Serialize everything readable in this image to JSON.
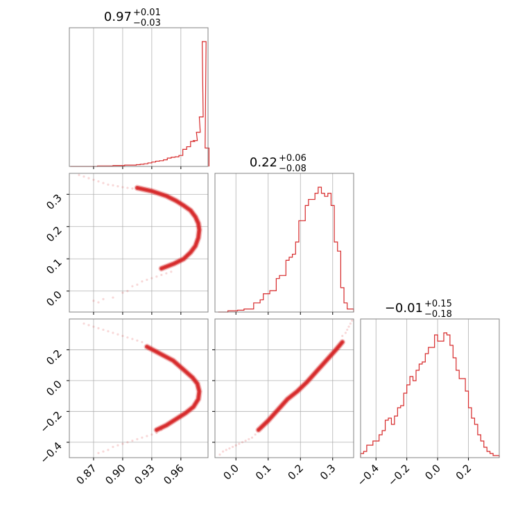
{
  "chart_data": [
    {
      "type": "corner",
      "colors": {
        "series": "#d62728",
        "grid": "#b0b0b0",
        "frame": "#808080"
      },
      "grid": true,
      "parameters": [
        {
          "id": "p0",
          "range": [
            0.845,
            0.988
          ],
          "ticks": [
            0.87,
            0.9,
            0.93,
            0.96
          ],
          "tick_labels": [
            "0.87",
            "0.90",
            "0.93",
            "0.96"
          ]
        },
        {
          "id": "p1",
          "range": [
            -0.065,
            0.365
          ],
          "ticks": [
            0.0,
            0.1,
            0.2,
            0.3
          ],
          "tick_labels": [
            "0.0",
            "0.1",
            "0.2",
            "0.3"
          ]
        },
        {
          "id": "p2",
          "range": [
            -0.5,
            0.4
          ],
          "ticks": [
            -0.4,
            -0.2,
            0.0,
            0.2
          ],
          "tick_labels": [
            "−0.4",
            "−0.2",
            "0.0",
            "0.2"
          ]
        }
      ],
      "marginals": [
        {
          "param": "p0",
          "title": {
            "median": "0.97",
            "upper": "+0.01",
            "lower": "−0.03"
          },
          "histogram": {
            "x": [
              0.848,
              0.852,
              0.856,
              0.86,
              0.864,
              0.868,
              0.872,
              0.876,
              0.88,
              0.884,
              0.888,
              0.892,
              0.896,
              0.9,
              0.904,
              0.908,
              0.912,
              0.916,
              0.92,
              0.924,
              0.928,
              0.932,
              0.936,
              0.94,
              0.944,
              0.948,
              0.952,
              0.956,
              0.96,
              0.964,
              0.968,
              0.972,
              0.975,
              0.978,
              0.981,
              0.984,
              0.987
            ],
            "counts": [
              0,
              0,
              0,
              0,
              0,
              0,
              0,
              1,
              1,
              1,
              1,
              2,
              2,
              2,
              3,
              3,
              3,
              4,
              5,
              6,
              8,
              10,
              12,
              13,
              15,
              19,
              21,
              22,
              25,
              39,
              45,
              57,
              59,
              78,
              113,
              285,
              42
            ]
          }
        },
        {
          "param": "p1",
          "title": {
            "median": "0.22",
            "upper": "+0.06",
            "lower": "−0.08"
          },
          "histogram": {
            "x": [
              -0.05,
              -0.04,
              -0.03,
              -0.02,
              -0.01,
              0.0,
              0.01,
              0.02,
              0.03,
              0.04,
              0.05,
              0.06,
              0.07,
              0.08,
              0.09,
              0.1,
              0.11,
              0.12,
              0.13,
              0.14,
              0.15,
              0.16,
              0.17,
              0.18,
              0.19,
              0.2,
              0.21,
              0.22,
              0.23,
              0.24,
              0.25,
              0.26,
              0.27,
              0.28,
              0.29,
              0.3,
              0.31,
              0.32,
              0.33,
              0.34,
              0.35,
              0.36
            ],
            "counts": [
              0,
              0,
              0,
              2,
              2,
              2,
              3,
              3,
              5,
              5,
              5,
              15,
              15,
              20,
              30,
              30,
              35,
              35,
              55,
              60,
              60,
              85,
              90,
              95,
              115,
              150,
              150,
              175,
              185,
              185,
              195,
              205,
              195,
              190,
              195,
              175,
              115,
              100,
              40,
              15,
              5,
              5
            ]
          }
        },
        {
          "param": "p2",
          "title": {
            "median": "−0.01",
            "upper": "+0.15",
            "lower": "−0.18"
          },
          "histogram": {
            "x": [
              -0.49,
              -0.47,
              -0.45,
              -0.43,
              -0.41,
              -0.39,
              -0.37,
              -0.35,
              -0.33,
              -0.31,
              -0.29,
              -0.27,
              -0.25,
              -0.23,
              -0.21,
              -0.19,
              -0.17,
              -0.15,
              -0.13,
              -0.11,
              -0.09,
              -0.07,
              -0.05,
              -0.03,
              -0.01,
              0.01,
              0.03,
              0.05,
              0.07,
              0.09,
              0.11,
              0.13,
              0.15,
              0.17,
              0.19,
              0.21,
              0.23,
              0.25,
              0.27,
              0.29,
              0.31,
              0.33,
              0.35,
              0.37,
              0.39
            ],
            "counts": [
              10,
              15,
              30,
              30,
              40,
              40,
              55,
              65,
              90,
              95,
              80,
              100,
              120,
              125,
              155,
              175,
              195,
              185,
              210,
              225,
              230,
              250,
              265,
              265,
              295,
              280,
              280,
              300,
              295,
              270,
              240,
              210,
              190,
              190,
              160,
              120,
              95,
              80,
              55,
              40,
              25,
              15,
              10,
              5,
              5
            ]
          }
        }
      ],
      "joint": [
        {
          "x": "p0",
          "y": "p1",
          "scatter": [
            [
              0.855,
              0.36
            ],
            [
              0.86,
              0.355
            ],
            [
              0.865,
              0.35
            ],
            [
              0.87,
              0.345
            ],
            [
              0.875,
              0.34
            ],
            [
              0.88,
              0.335
            ],
            [
              0.885,
              0.33
            ],
            [
              0.89,
              0.328
            ],
            [
              0.895,
              0.325
            ],
            [
              0.9,
              0.322
            ],
            [
              0.905,
              0.32
            ],
            [
              0.91,
              0.318
            ],
            [
              0.915,
              0.316
            ],
            [
              0.87,
              -0.03
            ],
            [
              0.875,
              -0.035
            ],
            [
              0.88,
              -0.025
            ],
            [
              0.89,
              -0.02
            ],
            [
              0.9,
              -0.005
            ],
            [
              0.905,
              0.0
            ],
            [
              0.91,
              0.015
            ],
            [
              0.915,
              0.02
            ],
            [
              0.92,
              0.03
            ],
            [
              0.925,
              0.035
            ],
            [
              0.93,
              0.04
            ],
            [
              0.935,
              0.045
            ],
            [
              0.94,
              0.05
            ],
            [
              0.945,
              0.055
            ],
            [
              0.95,
              0.06
            ]
          ],
          "contour": [
            [
              0.915,
              0.32
            ],
            [
              0.93,
              0.31
            ],
            [
              0.945,
              0.295
            ],
            [
              0.955,
              0.28
            ],
            [
              0.963,
              0.265
            ],
            [
              0.97,
              0.25
            ],
            [
              0.975,
              0.23
            ],
            [
              0.978,
              0.21
            ],
            [
              0.979,
              0.19
            ],
            [
              0.978,
              0.165
            ],
            [
              0.975,
              0.14
            ],
            [
              0.97,
              0.12
            ],
            [
              0.963,
              0.1
            ],
            [
              0.953,
              0.085
            ],
            [
              0.94,
              0.07
            ]
          ]
        },
        {
          "x": "p0",
          "y": "p2",
          "scatter": [
            [
              0.86,
              0.37
            ],
            [
              0.865,
              0.36
            ],
            [
              0.87,
              0.35
            ],
            [
              0.875,
              0.34
            ],
            [
              0.88,
              0.33
            ],
            [
              0.885,
              0.32
            ],
            [
              0.89,
              0.31
            ],
            [
              0.895,
              0.3
            ],
            [
              0.9,
              0.29
            ],
            [
              0.905,
              0.28
            ],
            [
              0.91,
              0.27
            ],
            [
              0.915,
              0.26
            ],
            [
              0.92,
              0.25
            ],
            [
              0.875,
              -0.47
            ],
            [
              0.88,
              -0.46
            ],
            [
              0.885,
              -0.45
            ],
            [
              0.89,
              -0.43
            ],
            [
              0.895,
              -0.42
            ],
            [
              0.9,
              -0.41
            ],
            [
              0.905,
              -0.4
            ],
            [
              0.91,
              -0.39
            ],
            [
              0.915,
              -0.38
            ],
            [
              0.92,
              -0.37
            ],
            [
              0.925,
              -0.36
            ],
            [
              0.93,
              -0.35
            ],
            [
              0.935,
              -0.34
            ],
            [
              0.94,
              -0.32
            ]
          ],
          "contour": [
            [
              0.925,
              0.22
            ],
            [
              0.94,
              0.17
            ],
            [
              0.952,
              0.13
            ],
            [
              0.963,
              0.07
            ],
            [
              0.972,
              0.02
            ],
            [
              0.977,
              -0.02
            ],
            [
              0.979,
              -0.07
            ],
            [
              0.978,
              -0.12
            ],
            [
              0.973,
              -0.17
            ],
            [
              0.965,
              -0.21
            ],
            [
              0.955,
              -0.25
            ],
            [
              0.945,
              -0.29
            ],
            [
              0.935,
              -0.32
            ]
          ]
        },
        {
          "x": "p1",
          "y": "p2",
          "scatter": [
            [
              -0.05,
              -0.48
            ],
            [
              -0.04,
              -0.46
            ],
            [
              -0.03,
              -0.45
            ],
            [
              -0.02,
              -0.44
            ],
            [
              -0.01,
              -0.43
            ],
            [
              0.0,
              -0.42
            ],
            [
              0.01,
              -0.41
            ],
            [
              0.02,
              -0.4
            ],
            [
              0.03,
              -0.39
            ],
            [
              0.04,
              -0.38
            ],
            [
              0.05,
              -0.37
            ],
            [
              0.06,
              -0.35
            ],
            [
              0.33,
              0.29
            ],
            [
              0.34,
              0.31
            ],
            [
              0.345,
              0.33
            ],
            [
              0.35,
              0.35
            ],
            [
              0.355,
              0.37
            ],
            [
              0.36,
              0.39
            ]
          ],
          "contour": [
            [
              0.07,
              -0.32
            ],
            [
              0.1,
              -0.26
            ],
            [
              0.13,
              -0.19
            ],
            [
              0.16,
              -0.12
            ],
            [
              0.19,
              -0.07
            ],
            [
              0.22,
              -0.01
            ],
            [
              0.25,
              0.06
            ],
            [
              0.28,
              0.13
            ],
            [
              0.31,
              0.2
            ],
            [
              0.33,
              0.25
            ]
          ]
        }
      ]
    }
  ]
}
